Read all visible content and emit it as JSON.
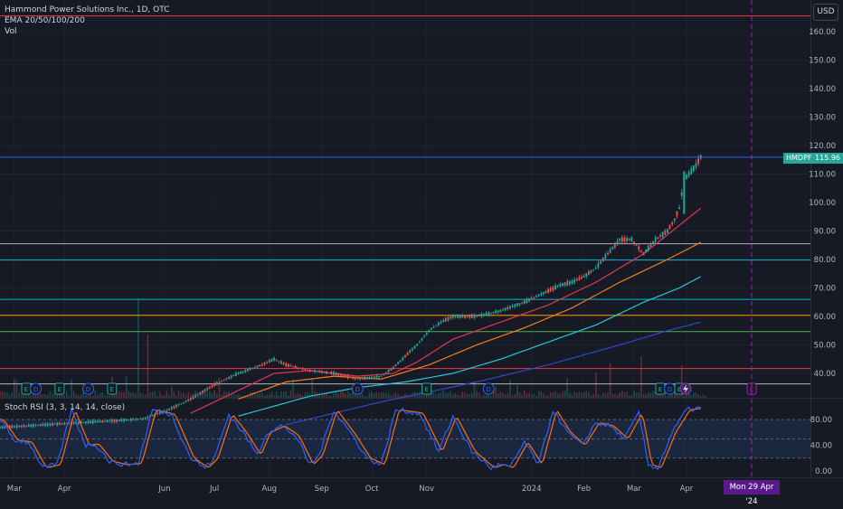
{
  "legend": {
    "symbol_line": "Hammond Power Solutions Inc., 1D, OTC",
    "ema_line": "EMA 20/50/100/200",
    "vol_line": "Vol"
  },
  "currency": "USD",
  "last_price": {
    "ticker": "HMDPF",
    "value": "115.96",
    "color": "#26a69a"
  },
  "crosshair_date": "Mon 29 Apr '24",
  "stoch_rsi": {
    "label": "Stoch RSI (3, 3, 14, 14, close)",
    "ticks": [
      "80.00",
      "40.00",
      "0.00"
    ],
    "k_color": "#2962ff",
    "d_color": "#ff6d00"
  },
  "colors": {
    "background": "#161a25",
    "up": "#26a69a",
    "down": "#ef5350",
    "ema20": "#e5364b",
    "ema50": "#f57c1f",
    "ema100": "#26c6da",
    "ema200": "#3049c9"
  },
  "chart_data": {
    "type": "candlestick",
    "title": "Hammond Power Solutions Inc., 1D, OTC",
    "price_axis": {
      "ticks": [
        160,
        150,
        140,
        130,
        120,
        110,
        100,
        90,
        80,
        70,
        60,
        50,
        40
      ],
      "range": [
        34,
        170
      ],
      "unit": "USD"
    },
    "time_axis": {
      "ticks": [
        {
          "label": "Mar",
          "t": 6
        },
        {
          "label": "Apr",
          "t": 27
        },
        {
          "label": "Jun",
          "t": 69
        },
        {
          "label": "Jul",
          "t": 90
        },
        {
          "label": "Aug",
          "t": 113
        },
        {
          "label": "Sep",
          "t": 135
        },
        {
          "label": "Oct",
          "t": 156
        },
        {
          "label": "Nov",
          "t": 179
        },
        {
          "label": "2024",
          "t": 223
        },
        {
          "label": "Feb",
          "t": 245
        },
        {
          "label": "Mar",
          "t": 266
        },
        {
          "label": "Apr",
          "t": 288
        }
      ]
    },
    "horizontal_levels": [
      {
        "value": 165.5,
        "color": "#f23645"
      },
      {
        "value": 115.9,
        "color": "#2962ff"
      },
      {
        "value": 85.5,
        "color": "#b2b5be"
      },
      {
        "value": 79.8,
        "color": "#00bcd4"
      },
      {
        "value": 66.0,
        "color": "#00bcd4"
      },
      {
        "value": 60.4,
        "color": "#ff9800"
      },
      {
        "value": 54.7,
        "color": "#4caf50"
      },
      {
        "value": 41.7,
        "color": "#f23645"
      },
      {
        "value": 36.3,
        "color": "#b2b5be"
      }
    ],
    "price_keypoints": [
      [
        0,
        21
      ],
      [
        20,
        22
      ],
      [
        40,
        23
      ],
      [
        60,
        24
      ],
      [
        70,
        27
      ],
      [
        80,
        31
      ],
      [
        90,
        36
      ],
      [
        100,
        40
      ],
      [
        110,
        43
      ],
      [
        115,
        45
      ],
      [
        120,
        43
      ],
      [
        130,
        41
      ],
      [
        140,
        40
      ],
      [
        150,
        38
      ],
      [
        160,
        39
      ],
      [
        165,
        42
      ],
      [
        170,
        46
      ],
      [
        175,
        50
      ],
      [
        180,
        55
      ],
      [
        185,
        58
      ],
      [
        190,
        60
      ],
      [
        200,
        60
      ],
      [
        210,
        62
      ],
      [
        220,
        65
      ],
      [
        230,
        69
      ],
      [
        235,
        71
      ],
      [
        240,
        72
      ],
      [
        245,
        74
      ],
      [
        250,
        77
      ],
      [
        255,
        82
      ],
      [
        260,
        87
      ],
      [
        265,
        87
      ],
      [
        270,
        82
      ],
      [
        275,
        87
      ],
      [
        280,
        90
      ],
      [
        283,
        94
      ],
      [
        285,
        98
      ],
      [
        287,
        108
      ],
      [
        290,
        111
      ],
      [
        292,
        113
      ],
      [
        294,
        116
      ]
    ],
    "ema_series": [
      {
        "name": "EMA 20",
        "color": "#e5364b",
        "points": [
          [
            80,
            26
          ],
          [
            100,
            34
          ],
          [
            115,
            40
          ],
          [
            130,
            41
          ],
          [
            150,
            39
          ],
          [
            165,
            40
          ],
          [
            175,
            44
          ],
          [
            190,
            52
          ],
          [
            210,
            58
          ],
          [
            230,
            64
          ],
          [
            250,
            72
          ],
          [
            270,
            82
          ],
          [
            282,
            90
          ],
          [
            294,
            98
          ]
        ]
      },
      {
        "name": "EMA 50",
        "color": "#f57c1f",
        "points": [
          [
            100,
            31
          ],
          [
            120,
            37
          ],
          [
            140,
            39
          ],
          [
            160,
            38
          ],
          [
            180,
            43
          ],
          [
            200,
            50
          ],
          [
            220,
            56
          ],
          [
            240,
            63
          ],
          [
            260,
            72
          ],
          [
            280,
            80
          ],
          [
            294,
            86
          ]
        ]
      },
      {
        "name": "EMA 100",
        "color": "#26c6da",
        "points": [
          [
            100,
            25
          ],
          [
            130,
            32
          ],
          [
            150,
            35
          ],
          [
            170,
            37
          ],
          [
            190,
            40
          ],
          [
            210,
            45
          ],
          [
            230,
            51
          ],
          [
            250,
            57
          ],
          [
            270,
            65
          ],
          [
            285,
            70
          ],
          [
            294,
            74
          ]
        ]
      },
      {
        "name": "EMA 200",
        "color": "#3049c9",
        "points": [
          [
            120,
            22
          ],
          [
            160,
            30
          ],
          [
            200,
            37
          ],
          [
            230,
            43
          ],
          [
            260,
            50
          ],
          [
            280,
            55
          ],
          [
            294,
            58
          ]
        ]
      }
    ],
    "events": [
      {
        "type": "E",
        "t": 11
      },
      {
        "type": "D",
        "t": 15
      },
      {
        "type": "E",
        "t": 25
      },
      {
        "type": "D",
        "t": 37
      },
      {
        "type": "E",
        "t": 47
      },
      {
        "type": "D",
        "t": 150
      },
      {
        "type": "E",
        "t": 179
      },
      {
        "type": "D",
        "t": 205
      },
      {
        "type": "E",
        "t": 277
      },
      {
        "type": "D",
        "t": 281
      },
      {
        "type": "E",
        "t": 285
      }
    ],
    "stoch_keypoints": [
      [
        0,
        80
      ],
      [
        6,
        48
      ],
      [
        12,
        45
      ],
      [
        18,
        5
      ],
      [
        24,
        10
      ],
      [
        30,
        95
      ],
      [
        36,
        40
      ],
      [
        40,
        42
      ],
      [
        46,
        15
      ],
      [
        52,
        10
      ],
      [
        58,
        12
      ],
      [
        64,
        95
      ],
      [
        72,
        88
      ],
      [
        80,
        20
      ],
      [
        86,
        5
      ],
      [
        90,
        20
      ],
      [
        96,
        88
      ],
      [
        102,
        60
      ],
      [
        108,
        25
      ],
      [
        112,
        60
      ],
      [
        118,
        70
      ],
      [
        124,
        55
      ],
      [
        130,
        10
      ],
      [
        134,
        25
      ],
      [
        140,
        95
      ],
      [
        148,
        55
      ],
      [
        154,
        20
      ],
      [
        160,
        10
      ],
      [
        166,
        95
      ],
      [
        176,
        90
      ],
      [
        184,
        30
      ],
      [
        190,
        85
      ],
      [
        198,
        30
      ],
      [
        206,
        5
      ],
      [
        210,
        10
      ],
      [
        214,
        5
      ],
      [
        220,
        45
      ],
      [
        226,
        10
      ],
      [
        232,
        95
      ],
      [
        238,
        60
      ],
      [
        244,
        40
      ],
      [
        250,
        75
      ],
      [
        256,
        70
      ],
      [
        262,
        50
      ],
      [
        268,
        90
      ],
      [
        272,
        10
      ],
      [
        276,
        5
      ],
      [
        282,
        60
      ],
      [
        288,
        95
      ],
      [
        294,
        98
      ]
    ]
  }
}
